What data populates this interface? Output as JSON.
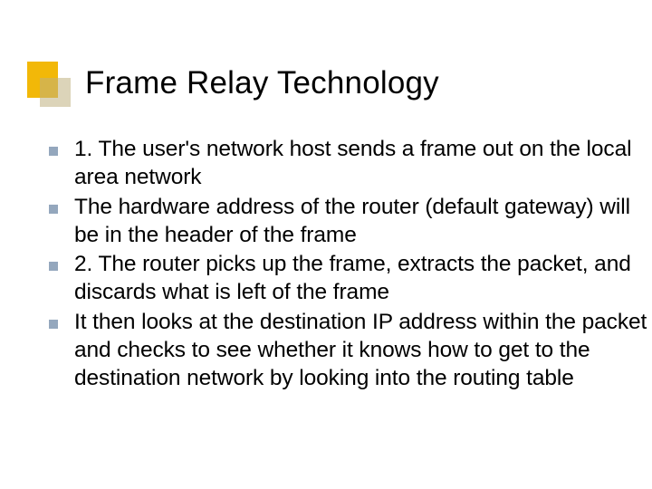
{
  "slide": {
    "title": "Frame Relay Technology",
    "title_fontsize": 35,
    "title_color": "#000000",
    "decoration": {
      "back_color": "#f2b808",
      "front_color": "#c0b080",
      "front_opacity": 0.55
    },
    "bullet_marker_color": "#94a7bd",
    "bullet_fontsize": 24.5,
    "bullet_color": "#000000",
    "background_color": "#ffffff",
    "bullets": [
      "1. The user's network host sends a frame out on the local area network",
      "The hardware address of the router (default gateway) will be in the header of the frame",
      "2. The router picks up the frame, extracts the packet, and discards what is left of the frame",
      "It then looks at the destination IP address within the packet and checks to see whether it knows how to get to the destination network by looking into the routing table"
    ]
  }
}
